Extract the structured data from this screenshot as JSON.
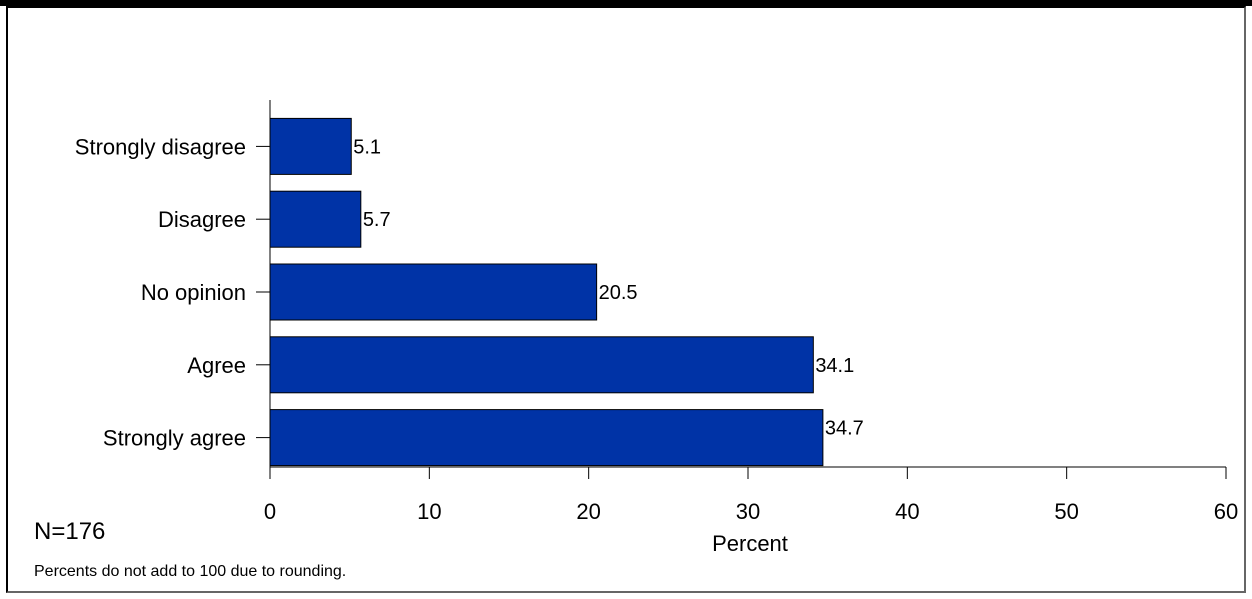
{
  "chart_data": {
    "type": "bar",
    "orientation": "horizontal",
    "categories": [
      "Strongly disagree",
      "Disagree",
      "No opinion",
      "Agree",
      "Strongly agree"
    ],
    "values": [
      5.1,
      5.7,
      20.5,
      34.1,
      34.7
    ],
    "value_labels": [
      "5.1",
      "5.7",
      "20.5",
      "34.1",
      "34.7"
    ],
    "xlabel": "Percent",
    "xlim": [
      0,
      60
    ],
    "xticks": [
      "0",
      "10",
      "20",
      "30",
      "40",
      "50",
      "60"
    ],
    "bar_color": "#0033A6",
    "grid": false
  },
  "notes": {
    "n": "N=176",
    "footnote": "Percents do not add to 100 due to rounding."
  }
}
